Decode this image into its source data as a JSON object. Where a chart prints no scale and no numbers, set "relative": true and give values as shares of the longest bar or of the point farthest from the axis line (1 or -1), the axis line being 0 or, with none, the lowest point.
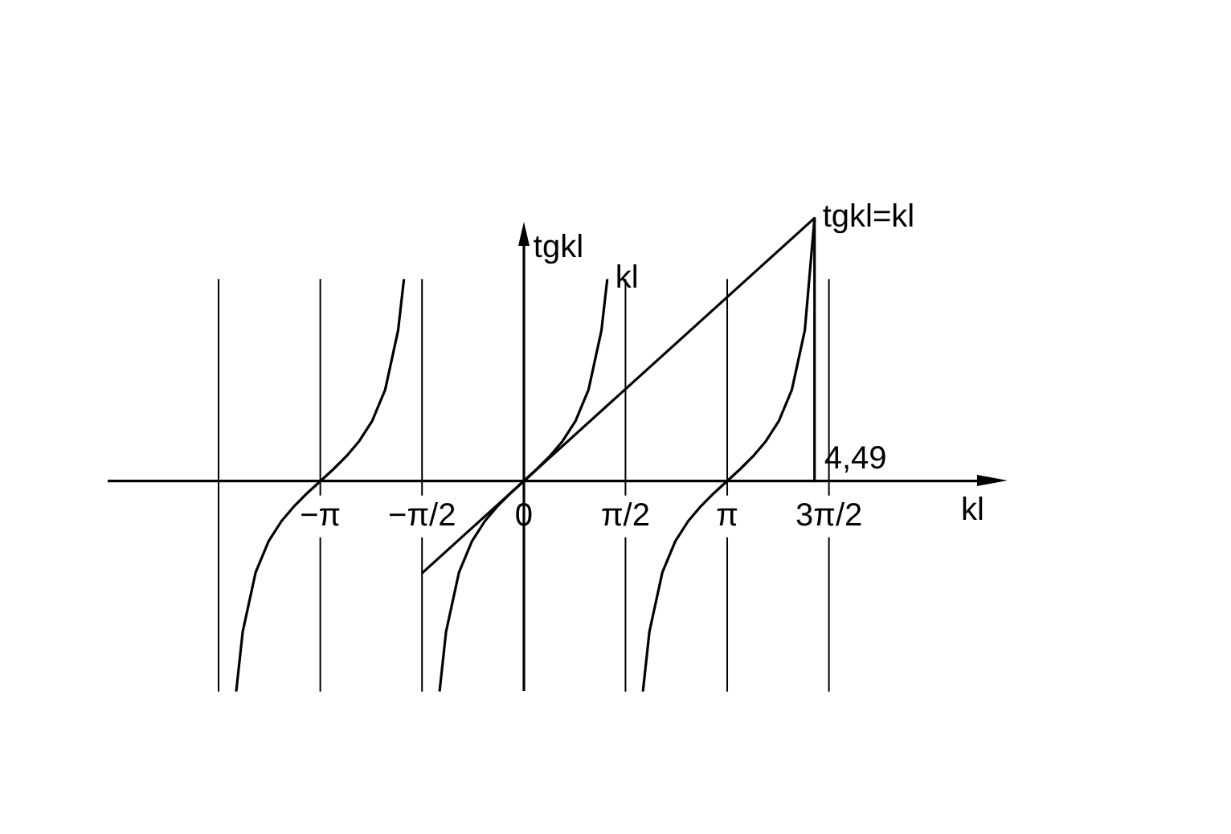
{
  "chart_data": {
    "type": "line",
    "relative": true,
    "xlabel": "kl",
    "ylabel": "tgkl",
    "xlim": [
      -6.4,
      7
    ],
    "xticks": [
      {
        "value": -3.1416,
        "label": "−π"
      },
      {
        "value": -1.5708,
        "label": "−π/2"
      },
      {
        "value": 0,
        "label": "0"
      },
      {
        "value": 1.5708,
        "label": "π/2"
      },
      {
        "value": 3.1416,
        "label": "π"
      },
      {
        "value": 4.7124,
        "label": "3π/2"
      }
    ],
    "series": [
      {
        "color": "#000000",
        "x": [
          -4.44,
          -4.34,
          -4.14,
          -3.94,
          -3.74,
          -3.54,
          -3.34,
          -3.14,
          -2.94,
          -2.74,
          -2.54,
          -2.34,
          -2.14,
          -1.94,
          -1.85
        ],
        "values": [
          -0.8,
          -0.573,
          -0.347,
          -0.229,
          -0.152,
          -0.094,
          -0.045,
          0,
          0.045,
          0.094,
          0.152,
          0.229,
          0.347,
          0.573,
          0.768
        ]
      },
      {
        "name": "kl",
        "color": "#000000",
        "x": [
          -1.3,
          -1.2,
          -1.0,
          -0.8,
          -0.6,
          -0.4,
          -0.2,
          0,
          0.2,
          0.4,
          0.6,
          0.8,
          1.0,
          1.2,
          1.29
        ],
        "values": [
          -0.8,
          -0.573,
          -0.347,
          -0.229,
          -0.152,
          -0.094,
          -0.045,
          0,
          0.045,
          0.094,
          0.152,
          0.229,
          0.347,
          0.573,
          0.768
        ]
      },
      {
        "color": "#000000",
        "x": [
          1.84,
          1.94,
          2.14,
          2.34,
          2.54,
          2.74,
          2.94,
          3.14,
          3.34,
          3.54,
          3.74,
          3.94,
          4.14,
          4.34,
          4.49
        ],
        "values": [
          -0.8,
          -0.573,
          -0.347,
          -0.229,
          -0.152,
          -0.094,
          -0.045,
          0,
          0.045,
          0.094,
          0.152,
          0.229,
          0.347,
          0.573,
          1
        ]
      },
      {
        "name": "tgkl=kl",
        "color": "#000000",
        "x": [
          -1.5708,
          4.49
        ],
        "values": [
          -0.35,
          1
        ]
      },
      {
        "name": "4,49",
        "color": "#000000",
        "x": [
          4.49,
          4.49
        ],
        "values": [
          1,
          0
        ]
      }
    ],
    "ref_lines": [
      {
        "axis": "x",
        "value": -4.7124,
        "color": "#000000"
      },
      {
        "axis": "x",
        "value": -3.1416,
        "color": "#000000"
      },
      {
        "axis": "x",
        "value": -1.5708,
        "color": "#000000"
      },
      {
        "axis": "x",
        "value": 1.5708,
        "color": "#000000"
      },
      {
        "axis": "x",
        "value": 3.1416,
        "color": "#000000"
      },
      {
        "axis": "x",
        "value": 4.7124,
        "color": "#000000"
      }
    ],
    "marker": "none",
    "grid": false,
    "legend": false
  }
}
